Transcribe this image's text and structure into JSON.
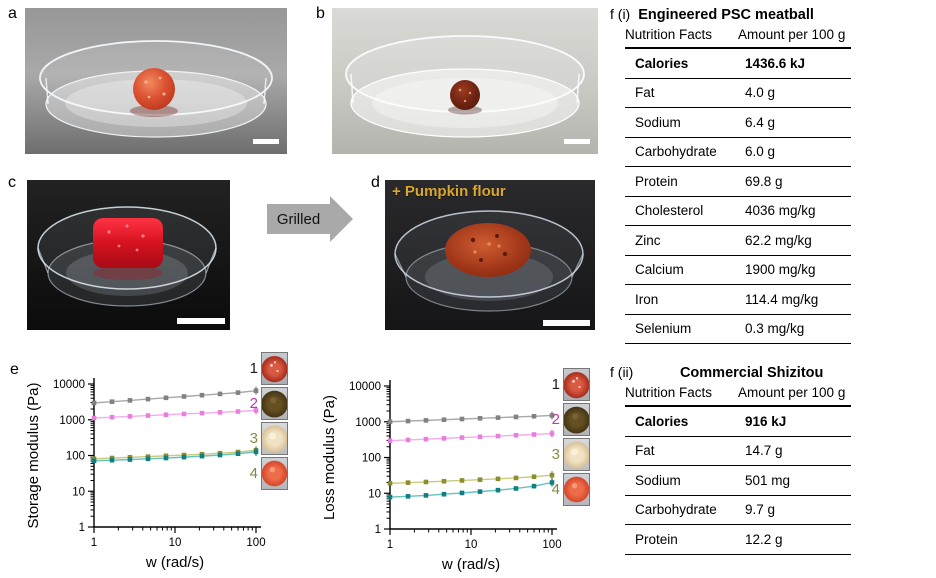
{
  "panels": {
    "a": {
      "label": "a"
    },
    "b": {
      "label": "b"
    },
    "c": {
      "label": "c"
    },
    "d": {
      "label": "d",
      "overlay_text": "+ Pumpkin flour"
    },
    "e": {
      "label": "e"
    },
    "f1": {
      "label": "f (i)"
    },
    "f2": {
      "label": "f (ii)"
    }
  },
  "process_arrow": {
    "label": "Grilled"
  },
  "nutrition_tables": [
    {
      "panel": "f (i)",
      "title": "Engineered PSC meatball",
      "header": [
        "Nutrition Facts",
        "Amount per 100 g"
      ],
      "rows": [
        [
          "Calories",
          "1436.6 kJ"
        ],
        [
          "Fat",
          "4.0 g"
        ],
        [
          "Sodium",
          "6.4 g"
        ],
        [
          "Carbohydrate",
          "6.0 g"
        ],
        [
          "Protein",
          "69.8 g"
        ],
        [
          "Cholesterol",
          "4036 mg/kg"
        ],
        [
          "Zinc",
          "62.2 mg/kg"
        ],
        [
          "Calcium",
          "1900 mg/kg"
        ],
        [
          "Iron",
          "114.4 mg/kg"
        ],
        [
          "Selenium",
          "0.3 mg/kg"
        ]
      ]
    },
    {
      "panel": "f (ii)",
      "title": "Commercial Shizitou",
      "header": [
        "Nutrition Facts",
        "Amount per 100 g"
      ],
      "rows": [
        [
          "Calories",
          "916 kJ"
        ],
        [
          "Fat",
          "14.7 g"
        ],
        [
          "Sodium",
          "501 mg"
        ],
        [
          "Carbohydrate",
          "9.7 g"
        ],
        [
          "Protein",
          "12.2 g"
        ]
      ]
    }
  ],
  "chart_data": [
    {
      "type": "line",
      "title": "",
      "xlabel": "w (rad/s)",
      "ylabel": "Storage modulus (Pa)",
      "xscale": "log",
      "yscale": "log",
      "xlim": [
        1,
        100
      ],
      "ylim": [
        1,
        10000
      ],
      "grid": false,
      "legend_position": "right-outside",
      "x": [
        1,
        1.67,
        2.78,
        4.64,
        7.74,
        12.92,
        21.54,
        35.94,
        59.95,
        100
      ],
      "series": [
        {
          "name": "1",
          "line_color": "#a8a8a8",
          "marker_color": "#828282",
          "values": [
            2950,
            3200,
            3480,
            3780,
            4110,
            4470,
            4860,
            5280,
            5740,
            6500
          ]
        },
        {
          "name": "2",
          "line_color": "#f2aeea",
          "marker_color": "#e87fde",
          "values": [
            1120,
            1180,
            1240,
            1310,
            1380,
            1450,
            1530,
            1610,
            1700,
            1820
          ]
        },
        {
          "name": "3",
          "line_color": "#c8cb7e",
          "marker_color": "#8d8d2f",
          "values": [
            81,
            85,
            89,
            93,
            98,
            103,
            109,
            116,
            125,
            140
          ]
        },
        {
          "name": "4",
          "line_color": "#66c2bd",
          "marker_color": "#117f82",
          "values": [
            71,
            74,
            77,
            81,
            85,
            90,
            96,
            103,
            112,
            127
          ]
        }
      ],
      "legend": [
        {
          "label": "1",
          "color": "#1a1a1a",
          "thumb": "red-meatball"
        },
        {
          "label": "2",
          "color": "#bb3ba3",
          "thumb": "brown-meatball"
        },
        {
          "label": "3",
          "color": "#8f8a4a",
          "thumb": "cream-dough"
        },
        {
          "label": "4",
          "color": "#7c8b41",
          "thumb": "orange-ball"
        }
      ]
    },
    {
      "type": "line",
      "title": "",
      "xlabel": "w (rad/s)",
      "ylabel": "Loss modulus (Pa)",
      "xscale": "log",
      "yscale": "log",
      "xlim": [
        1,
        100
      ],
      "ylim": [
        1,
        10000
      ],
      "grid": false,
      "legend_position": "right-outside",
      "x": [
        1,
        1.67,
        2.78,
        4.64,
        7.74,
        12.92,
        21.54,
        35.94,
        59.95,
        100
      ],
      "series": [
        {
          "name": "1",
          "line_color": "#a8a8a8",
          "marker_color": "#828282",
          "values": [
            1000,
            1045,
            1092,
            1141,
            1193,
            1247,
            1303,
            1362,
            1424,
            1500
          ]
        },
        {
          "name": "2",
          "line_color": "#f2aeea",
          "marker_color": "#e87fde",
          "values": [
            295,
            310,
            326,
            343,
            360,
            379,
            398,
            419,
            440,
            468
          ]
        },
        {
          "name": "3",
          "line_color": "#c8cb7e",
          "marker_color": "#8d8d2f",
          "values": [
            19,
            19.8,
            20.7,
            21.7,
            22.8,
            24,
            25.3,
            26.8,
            29,
            32
          ]
        },
        {
          "name": "4",
          "line_color": "#66c2bd",
          "marker_color": "#117f82",
          "values": [
            7.8,
            8.2,
            8.7,
            9.4,
            10.2,
            11.1,
            12.2,
            13.6,
            15.8,
            20
          ]
        }
      ],
      "legend": [
        {
          "label": "1",
          "color": "#1a1a1a",
          "thumb": "red-meatball"
        },
        {
          "label": "2",
          "color": "#bb3ba3",
          "thumb": "brown-meatball"
        },
        {
          "label": "3",
          "color": "#8f8a4a",
          "thumb": "cream-dough"
        },
        {
          "label": "4",
          "color": "#7c8b41",
          "thumb": "orange-ball"
        }
      ]
    }
  ],
  "colors": {
    "pumpkin_text": "#d9a62e",
    "arrow_gray": "#a9a9a9",
    "scale_bar": "#ffffff"
  }
}
